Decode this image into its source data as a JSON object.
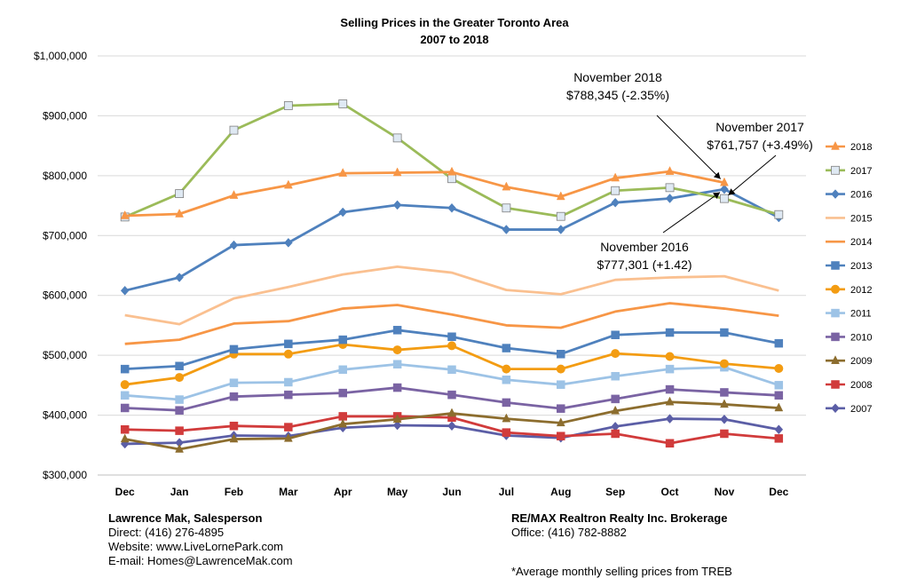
{
  "chart_data": {
    "type": "line",
    "title": "Selling Prices in the Greater Toronto Area",
    "subtitle": "2007 to 2018",
    "xlabel": "",
    "ylabel": "",
    "categories": [
      "Dec",
      "Jan",
      "Feb",
      "Mar",
      "Apr",
      "May",
      "Jun",
      "Jul",
      "Aug",
      "Sep",
      "Oct",
      "Nov",
      "Dec"
    ],
    "ylim": [
      300000,
      1000000
    ],
    "yticks": [
      300000,
      400000,
      500000,
      600000,
      700000,
      800000,
      900000,
      1000000
    ],
    "ytick_labels": [
      "$300,000",
      "$400,000",
      "$500,000",
      "$600,000",
      "$700,000",
      "$800,000",
      "$900,000",
      "$1,000,000"
    ],
    "grid": "horizontal",
    "legend_position": "right",
    "series": [
      {
        "name": "2018",
        "color": "#f79646",
        "marker": "triangle",
        "values": [
          733000,
          736000,
          767000,
          784000,
          804000,
          805000,
          806000,
          781000,
          765000,
          796000,
          807000,
          788345,
          null
        ]
      },
      {
        "name": "2017",
        "color": "#9bbb59",
        "marker": "square-open",
        "values": [
          731000,
          770000,
          876000,
          917000,
          920000,
          863000,
          795000,
          746000,
          732000,
          775000,
          780000,
          761757,
          735000
        ]
      },
      {
        "name": "2016",
        "color": "#4f81bd",
        "marker": "diamond",
        "values": [
          608000,
          630000,
          684000,
          688000,
          739000,
          751000,
          746000,
          710000,
          710000,
          755000,
          762000,
          777301,
          730000
        ]
      },
      {
        "name": "2015",
        "color": "#fac090",
        "marker": "none",
        "values": [
          567000,
          552000,
          595000,
          614000,
          635000,
          648000,
          638000,
          609000,
          602000,
          626000,
          630000,
          632000,
          608000
        ]
      },
      {
        "name": "2014",
        "color": "#f79646",
        "marker": "none",
        "values": [
          519000,
          526000,
          553000,
          557000,
          578000,
          584000,
          568000,
          550000,
          546000,
          573000,
          587000,
          578000,
          566000
        ]
      },
      {
        "name": "2013",
        "color": "#4f81bd",
        "marker": "square",
        "values": [
          477000,
          482000,
          510000,
          519000,
          526000,
          542000,
          531000,
          512000,
          502000,
          534000,
          538000,
          538000,
          520000
        ]
      },
      {
        "name": "2012",
        "color": "#f39c12",
        "marker": "circle",
        "values": [
          451000,
          463000,
          502000,
          502000,
          518000,
          509000,
          516000,
          477000,
          477000,
          503000,
          498000,
          486000,
          478000
        ]
      },
      {
        "name": "2011",
        "color": "#9dc3e6",
        "marker": "square",
        "values": [
          433000,
          426000,
          454000,
          455000,
          476000,
          485000,
          476000,
          459000,
          451000,
          465000,
          477000,
          480000,
          450000
        ]
      },
      {
        "name": "2010",
        "color": "#7a63a3",
        "marker": "square",
        "values": [
          412000,
          408000,
          431000,
          434000,
          437000,
          446000,
          434000,
          421000,
          411000,
          427000,
          443000,
          438000,
          433000
        ]
      },
      {
        "name": "2009",
        "color": "#8c6d2e",
        "marker": "triangle",
        "values": [
          360000,
          343000,
          360000,
          361000,
          385000,
          393000,
          403000,
          394000,
          387000,
          407000,
          422000,
          418000,
          412000
        ]
      },
      {
        "name": "2008",
        "color": "#d13b3b",
        "marker": "square",
        "values": [
          376000,
          374000,
          382000,
          380000,
          398000,
          398000,
          396000,
          371000,
          365000,
          369000,
          353000,
          369000,
          361000
        ]
      },
      {
        "name": "2007",
        "color": "#5b5ea6",
        "marker": "diamond",
        "values": [
          352000,
          354000,
          366000,
          365000,
          379000,
          383000,
          382000,
          366000,
          362000,
          381000,
          394000,
          393000,
          376000
        ]
      }
    ],
    "annotations": [
      {
        "line1": "November 2018",
        "line2": "$788,345 (-2.35%)",
        "target_series": "2018",
        "target_index": 11
      },
      {
        "line1": "November 2017",
        "line2": "$761,757 (+3.49%)",
        "target_series": "2017",
        "target_index": 11
      },
      {
        "line1": "November 2016",
        "line2": "$777,301 (+1.42)",
        "target_series": "2016",
        "target_index": 11
      }
    ]
  },
  "contact_left": {
    "name": "Lawrence Mak, Salesperson",
    "direct": "Direct:  (416) 276-4895",
    "website": "Website:  www.LiveLornePark.com",
    "email": "E-mail:  Homes@LawrenceMak.com"
  },
  "contact_right": {
    "brokerage": "RE/MAX Realtron Realty Inc. Brokerage",
    "office": "Office: (416) 782-8882"
  },
  "footnote": "*Average monthly selling prices from TREB"
}
